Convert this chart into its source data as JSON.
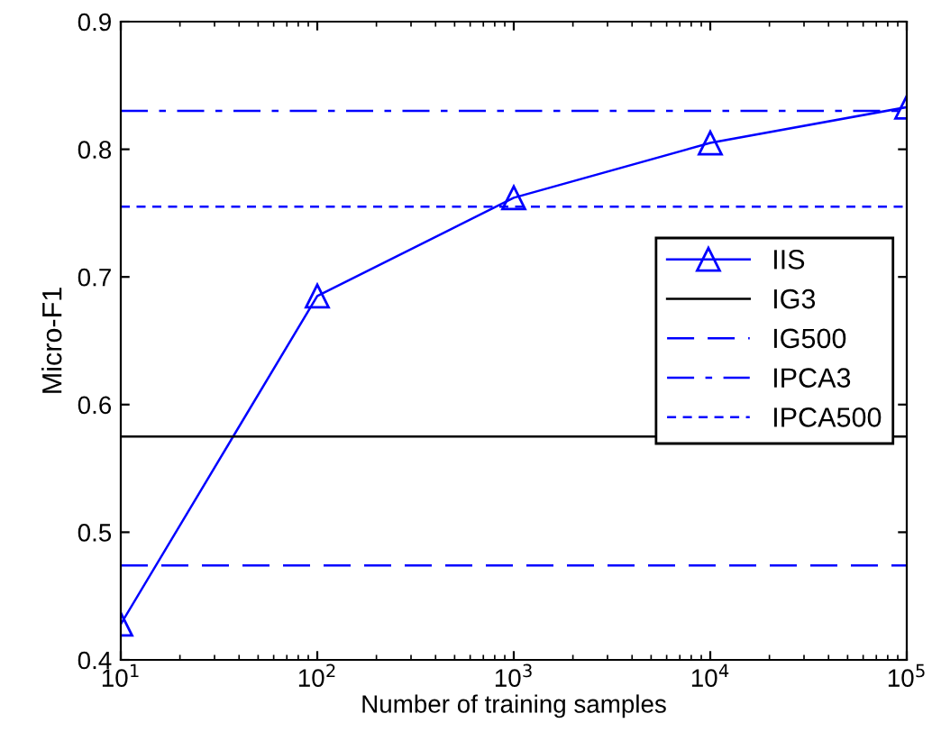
{
  "chart_data": {
    "type": "line",
    "xlabel": "Number of training samples",
    "ylabel": "Micro-F1",
    "log": "x",
    "xlim": [
      10,
      100000
    ],
    "ylim": [
      0.4,
      0.9
    ],
    "xticks": [
      {
        "value": 10,
        "label": "10$^{1}$"
      },
      {
        "value": 100,
        "label": "10$^{2}$"
      },
      {
        "value": 1000,
        "label": "10$^{3}$"
      },
      {
        "value": 10000,
        "label": "10$^{4}$"
      },
      {
        "value": 100000,
        "label": "10$^{5}$"
      }
    ],
    "yticks": [
      0.4,
      0.5,
      0.6,
      0.7,
      0.8,
      0.9
    ],
    "grid": false,
    "legend": "right",
    "series": [
      {
        "name": "IIS",
        "color": "#0000ff",
        "marker": "triangle",
        "line_style": "solid",
        "x": [
          10,
          100,
          1000,
          10000,
          100000
        ],
        "values": [
          0.428,
          0.685,
          0.762,
          0.805,
          0.833
        ]
      },
      {
        "name": "IG3",
        "color": "#000000",
        "marker": "none",
        "line_style": "solid",
        "x": [
          10,
          100000
        ],
        "values": [
          0.575,
          0.575
        ]
      },
      {
        "name": "IG500",
        "color": "#0000ff",
        "marker": "none",
        "line_style": "dashed",
        "x": [
          10,
          100000
        ],
        "values": [
          0.474,
          0.474
        ]
      },
      {
        "name": "IPCA3",
        "color": "#0000ff",
        "marker": "none",
        "line_style": "dashdot",
        "x": [
          10,
          100000
        ],
        "values": [
          0.83,
          0.83
        ]
      },
      {
        "name": "IPCA500",
        "color": "#0000ff",
        "marker": "none",
        "line_style": "dotted",
        "x": [
          10,
          100000
        ],
        "values": [
          0.755,
          0.755
        ]
      }
    ]
  }
}
